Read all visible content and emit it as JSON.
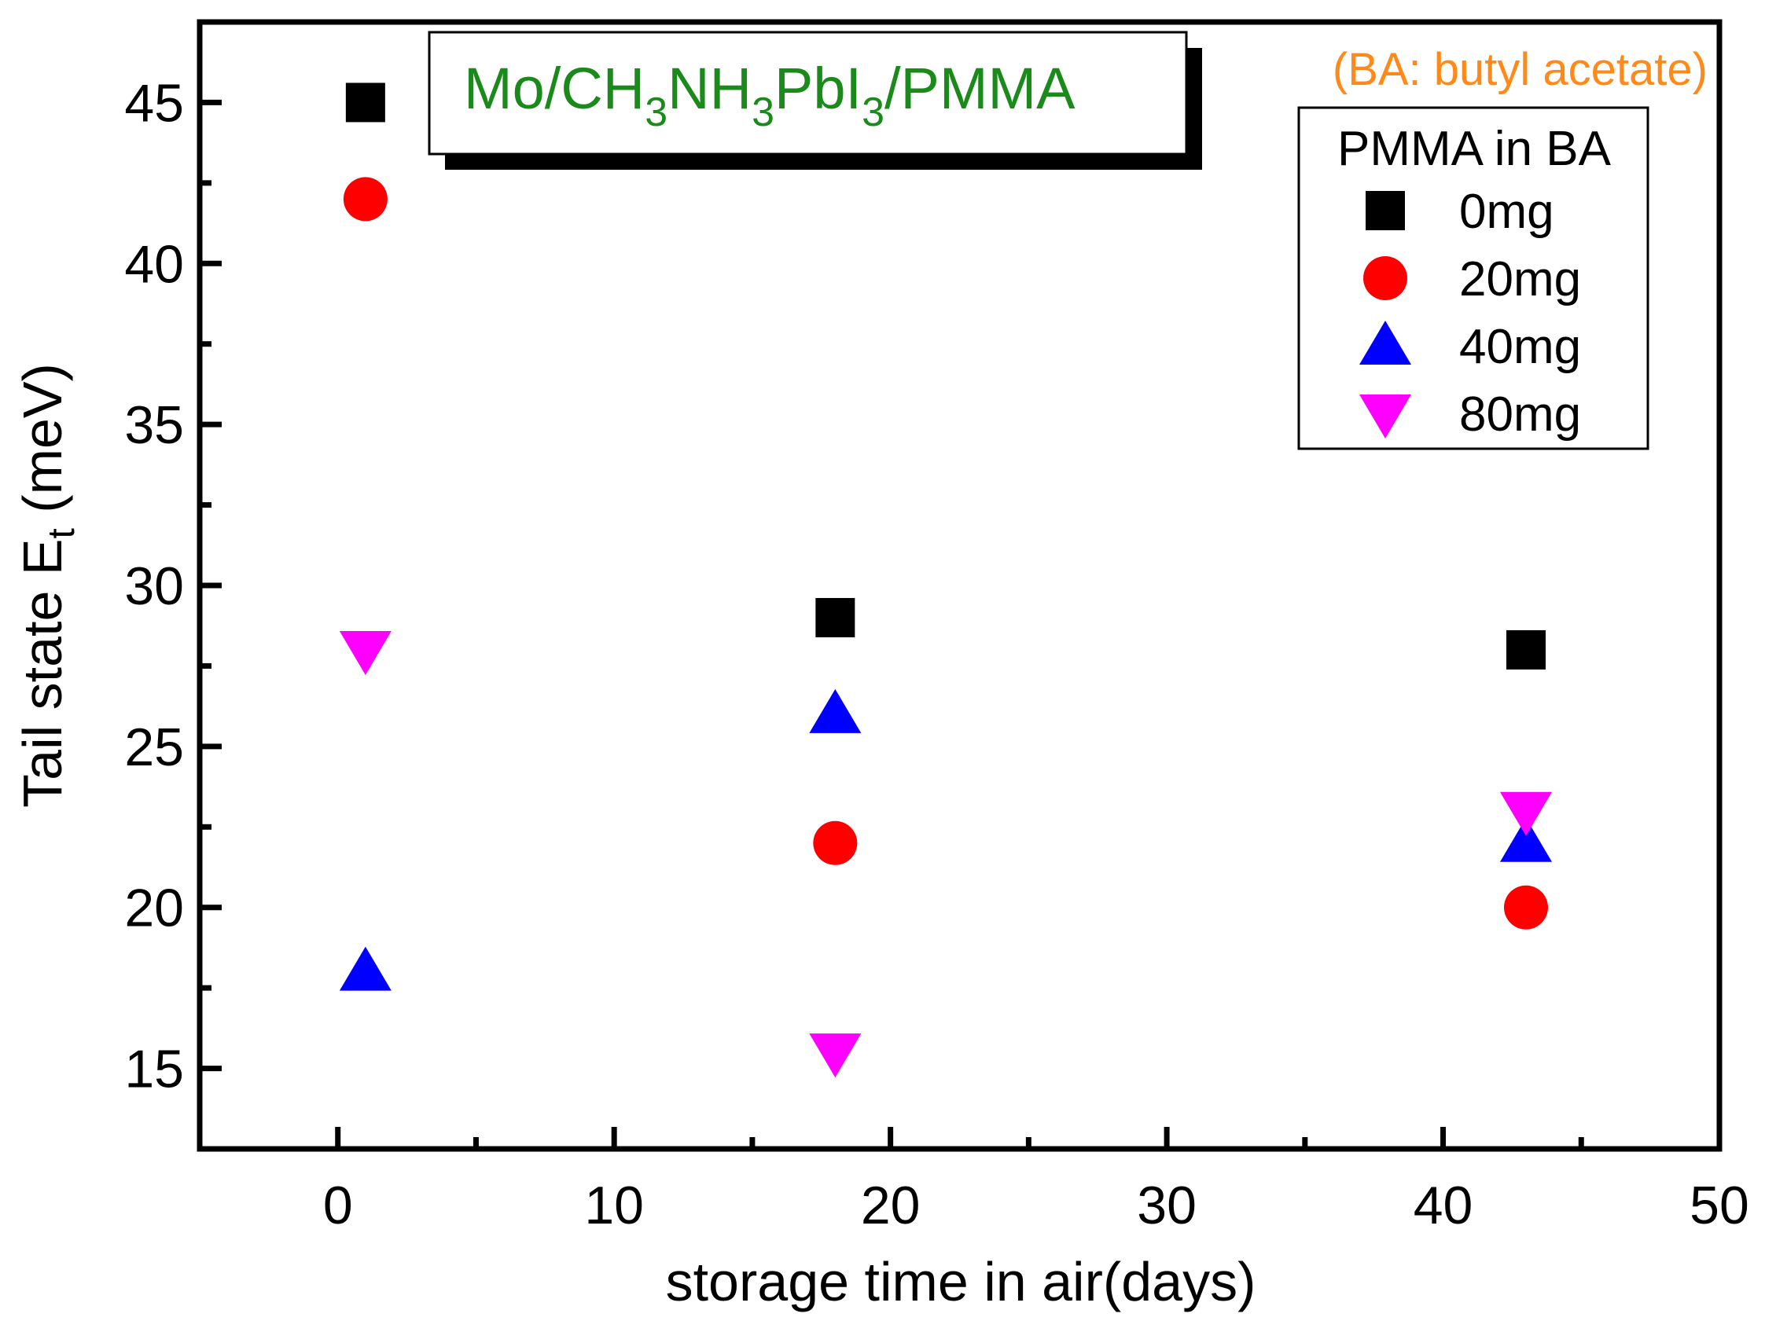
{
  "chart_data": {
    "type": "scatter",
    "title": "",
    "xlabel": "storage time in air(days)",
    "ylabel": "Tail state E",
    "ylabel_sub": "t",
    "ylabel_unit": " (meV)",
    "xlim": [
      -5,
      50
    ],
    "ylim": [
      12.5,
      47.5
    ],
    "xticks": [
      0,
      10,
      20,
      30,
      40,
      50
    ],
    "yticks": [
      15,
      20,
      25,
      30,
      35,
      40,
      45
    ],
    "legend": {
      "title": "PMMA in BA",
      "position": "top-right"
    },
    "series": [
      {
        "name": "0mg",
        "marker": "square",
        "color": "#000000",
        "points": [
          [
            1,
            45
          ],
          [
            18,
            29
          ],
          [
            43,
            28
          ]
        ]
      },
      {
        "name": "20mg",
        "marker": "circle",
        "color": "#ff0000",
        "points": [
          [
            1,
            42
          ],
          [
            18,
            22
          ],
          [
            43,
            20
          ]
        ]
      },
      {
        "name": "40mg",
        "marker": "triangle-up",
        "color": "#0000ff",
        "points": [
          [
            1,
            18
          ],
          [
            18,
            26
          ],
          [
            43,
            22
          ]
        ]
      },
      {
        "name": "80mg",
        "marker": "triangle-down",
        "color": "#ff00ff",
        "points": [
          [
            1,
            28
          ],
          [
            18,
            15.5
          ],
          [
            43,
            23
          ]
        ]
      }
    ],
    "annotations": {
      "inset_parts": [
        "Mo/CH",
        "3",
        "NH",
        "3",
        "PbI",
        "3",
        "/PMMA"
      ],
      "note": "(BA: butyl acetate)"
    }
  }
}
